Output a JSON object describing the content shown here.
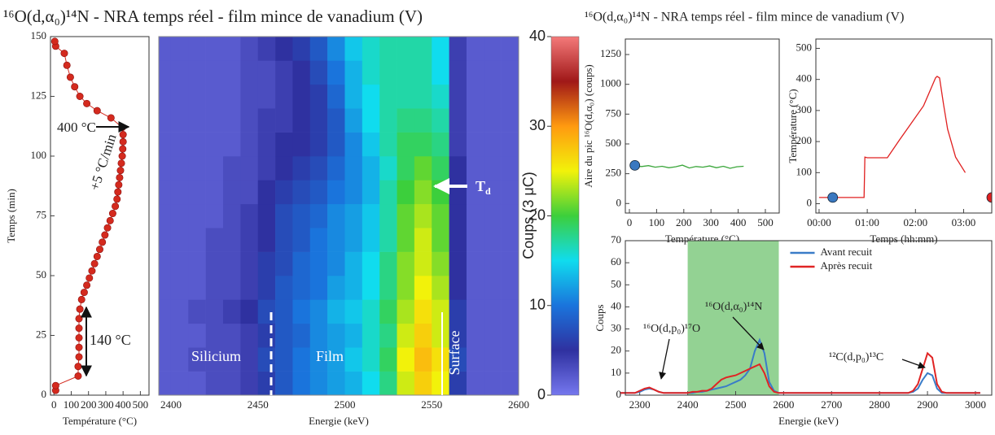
{
  "chart_data": [
    {
      "type": "scatter",
      "color": "#d42a1e",
      "x": [
        10,
        10,
        140,
        140,
        145,
        145,
        145,
        145,
        145,
        150,
        160,
        175,
        190,
        205,
        220,
        235,
        250,
        265,
        280,
        295,
        310,
        325,
        340,
        355,
        365,
        370,
        375,
        380,
        385,
        390,
        395,
        398,
        400,
        400,
        395,
        330,
        250,
        190,
        150,
        120,
        95,
        75,
        60,
        10,
        5
      ],
      "values": [
        2,
        4,
        8,
        12,
        16,
        20,
        24,
        28,
        32,
        36,
        40,
        43,
        46,
        49,
        52,
        55,
        58,
        61,
        64,
        67,
        70,
        73,
        76,
        79,
        82,
        85,
        88,
        91,
        94,
        97,
        100,
        103,
        106,
        109,
        112,
        116,
        119,
        122,
        125,
        129,
        133,
        138,
        143,
        146,
        148
      ],
      "xlim": [
        -20,
        550
      ],
      "ylim": [
        0,
        150
      ],
      "xticks": [
        0,
        100,
        200,
        300,
        400,
        500
      ],
      "yticks": [
        0,
        25,
        50,
        75,
        100,
        125,
        150
      ],
      "xlabel": "Température (°C)",
      "ylabel": "Temps (min)",
      "annotations": [
        "400 °C",
        "+5 °C/min",
        "140 °C"
      ]
    },
    {
      "type": "heatmap",
      "title": "¹⁶O(d,α₀)¹⁴N - NRA temps réel - film mince de vanadium (V)",
      "xbins": [
        2390,
        2400,
        2410,
        2420,
        2430,
        2440,
        2450,
        2460,
        2470,
        2480,
        2490,
        2500,
        2510,
        2520,
        2530,
        2540,
        2550,
        2560,
        2570,
        2580,
        2590,
        2600
      ],
      "ybins": [
        0,
        10,
        20,
        30,
        40,
        50,
        60,
        70,
        80,
        90,
        100,
        110,
        120,
        130,
        140,
        150
      ],
      "z": [
        [
          2,
          2,
          2,
          3,
          3,
          4,
          6,
          8,
          10,
          11,
          12,
          13,
          15,
          18,
          24,
          27,
          25,
          6,
          2,
          2,
          2
        ],
        [
          2,
          2,
          3,
          3,
          3,
          4,
          7,
          8,
          10,
          11,
          12,
          14,
          16,
          19,
          25,
          28,
          26,
          7,
          2,
          2,
          2
        ],
        [
          2,
          2,
          2,
          3,
          3,
          4,
          6,
          8,
          9,
          11,
          12,
          13,
          16,
          18,
          24,
          27,
          24,
          6,
          2,
          2,
          2
        ],
        [
          2,
          2,
          3,
          3,
          4,
          5,
          7,
          8,
          10,
          11,
          13,
          14,
          16,
          19,
          23,
          26,
          24,
          6,
          2,
          2,
          2
        ],
        [
          2,
          2,
          2,
          3,
          3,
          4,
          6,
          8,
          9,
          10,
          12,
          13,
          15,
          18,
          22,
          25,
          23,
          5,
          2,
          2,
          2
        ],
        [
          2,
          2,
          2,
          3,
          3,
          4,
          6,
          7,
          9,
          10,
          11,
          13,
          15,
          18,
          22,
          24,
          22,
          5,
          2,
          2,
          2
        ],
        [
          2,
          2,
          2,
          3,
          3,
          4,
          5,
          7,
          8,
          10,
          11,
          12,
          14,
          17,
          21,
          24,
          21,
          5,
          2,
          2,
          2
        ],
        [
          2,
          2,
          2,
          2,
          3,
          4,
          5,
          7,
          8,
          9,
          11,
          12,
          14,
          17,
          21,
          23,
          21,
          5,
          2,
          2,
          2
        ],
        [
          2,
          2,
          2,
          2,
          3,
          3,
          5,
          6,
          7,
          8,
          10,
          11,
          13,
          17,
          20,
          22,
          20,
          5,
          2,
          2,
          2
        ],
        [
          2,
          2,
          2,
          2,
          3,
          3,
          4,
          5,
          6,
          7,
          9,
          11,
          13,
          16,
          19,
          21,
          19,
          5,
          2,
          2,
          2
        ],
        [
          2,
          2,
          2,
          2,
          2,
          3,
          4,
          5,
          5,
          6,
          8,
          11,
          14,
          17,
          19,
          19,
          18,
          4,
          2,
          2,
          2
        ],
        [
          2,
          2,
          2,
          2,
          2,
          3,
          4,
          4,
          5,
          6,
          8,
          12,
          15,
          17,
          18,
          18,
          17,
          4,
          2,
          2,
          2
        ],
        [
          2,
          2,
          2,
          2,
          2,
          3,
          3,
          4,
          5,
          6,
          9,
          13,
          15,
          17,
          17,
          17,
          16,
          4,
          2,
          2,
          2
        ],
        [
          2,
          2,
          2,
          2,
          2,
          3,
          3,
          4,
          5,
          7,
          10,
          13,
          16,
          17,
          17,
          17,
          15,
          4,
          2,
          2,
          2
        ],
        [
          2,
          2,
          2,
          2,
          2,
          3,
          4,
          5,
          6,
          8,
          11,
          14,
          16,
          17,
          17,
          17,
          15,
          4,
          2,
          2,
          2
        ]
      ],
      "xlim": [
        2393,
        2600
      ],
      "ylim": [
        0,
        150
      ],
      "xticks": [
        2400,
        2450,
        2500,
        2550,
        2600
      ],
      "xlabel": "Energie (keV)",
      "colormap": [
        "#7577ee",
        "#2f31a0",
        "#1a74dc",
        "#10dcee",
        "#3ccf3c",
        "#f2f20a",
        "#ff9a10",
        "#a01818",
        "#f47a7a"
      ],
      "clim": [
        0,
        40
      ],
      "cticks": [
        0,
        10,
        20,
        30,
        40
      ],
      "clabel": "Coups (3 μC)",
      "annotations": [
        "Silicium",
        "Film",
        "Surface"
      ],
      "marker": {
        "main": "T",
        "sub": "d"
      }
    },
    {
      "type": "line",
      "title": "¹⁶O(d,α₀)¹⁴N - NRA temps réel - film mince de vanadium (V)",
      "x": [
        20,
        45,
        70,
        95,
        120,
        145,
        170,
        195,
        220,
        245,
        270,
        295,
        320,
        345,
        370,
        395,
        420
      ],
      "values": [
        315,
        310,
        318,
        305,
        312,
        300,
        308,
        322,
        298,
        310,
        305,
        315,
        300,
        312,
        295,
        308,
        312
      ],
      "color": "#3aa63a",
      "points": [
        {
          "x": 20,
          "y": 320,
          "color": "#3a78c0"
        }
      ],
      "xlim": [
        -15,
        551
      ],
      "ylim": [
        -80,
        1380
      ],
      "xticks": [
        0,
        100,
        200,
        300,
        400,
        500
      ],
      "yticks": [
        0,
        250,
        500,
        750,
        1000,
        1250
      ],
      "xlabel": "Température (°C)",
      "ylabel": "Aire du pic ¹⁶O(d,α₀) (coups)"
    },
    {
      "type": "line",
      "x": [
        0,
        10,
        20,
        30,
        40,
        50,
        56,
        57,
        60,
        70,
        80,
        85,
        100,
        115,
        130,
        145,
        147,
        150,
        155,
        160,
        170,
        182
      ],
      "values": [
        20,
        20,
        20,
        20,
        20,
        20,
        20,
        150,
        148,
        148,
        148,
        148,
        205,
        260,
        315,
        405,
        410,
        405,
        320,
        240,
        150,
        100
      ],
      "color": "#e02020",
      "points": [
        {
          "x": 17,
          "y": 20,
          "color": "#3a78c0"
        },
        {
          "x": 215,
          "y": 20,
          "color": "#e02020"
        }
      ],
      "xlim": [
        -4,
        215
      ],
      "ylim": [
        -30,
        530
      ],
      "xticks": [
        {
          "value": 0,
          "label": "00:00"
        },
        {
          "value": 60,
          "label": "01:00"
        },
        {
          "value": 120,
          "label": "02:00"
        },
        {
          "value": 180,
          "label": "03:00"
        }
      ],
      "yticks": [
        0,
        100,
        200,
        300,
        400,
        500
      ],
      "xlabel": "Temps (hh:mm)",
      "ylabel": "Température (°C)"
    },
    {
      "type": "multiline",
      "x": [
        2260,
        2270,
        2280,
        2290,
        2300,
        2310,
        2320,
        2330,
        2340,
        2350,
        2360,
        2370,
        2380,
        2390,
        2400,
        2410,
        2420,
        2430,
        2440,
        2450,
        2460,
        2470,
        2480,
        2490,
        2500,
        2510,
        2520,
        2530,
        2540,
        2550,
        2560,
        2570,
        2580,
        2590,
        2600,
        2610,
        2620,
        2630,
        2640,
        2650,
        2660,
        2670,
        2680,
        2690,
        2700,
        2710,
        2720,
        2730,
        2740,
        2750,
        2760,
        2770,
        2780,
        2790,
        2800,
        2810,
        2820,
        2830,
        2840,
        2850,
        2860,
        2870,
        2880,
        2890,
        2900,
        2910,
        2920,
        2930,
        2940,
        2950,
        2960,
        2970,
        2980,
        2990,
        3000,
        3010
      ],
      "series": [
        {
          "name": "Avant recuit",
          "color": "#3a7cc8",
          "values": [
            1,
            1,
            1,
            1,
            1.5,
            2.5,
            3,
            2.5,
            1.5,
            1,
            1,
            1,
            1,
            1,
            1,
            1,
            1.5,
            1.5,
            2,
            2.5,
            3,
            3.5,
            4,
            5,
            6,
            7,
            9,
            12,
            20,
            25,
            19,
            6,
            2,
            1,
            1,
            1,
            1,
            1,
            1,
            1,
            1,
            1,
            1,
            1,
            1,
            1,
            1,
            1,
            1,
            1,
            1,
            1,
            1,
            1,
            1,
            1,
            1,
            1,
            1,
            1,
            1,
            1.5,
            3,
            7,
            10,
            9,
            3,
            1,
            1,
            1,
            1,
            1,
            1,
            1,
            1,
            1
          ]
        },
        {
          "name": "Après recuit",
          "color": "#e02424",
          "values": [
            1,
            1,
            1,
            1,
            2,
            3,
            3.5,
            2.5,
            1.5,
            1,
            1,
            1,
            1,
            1,
            1,
            1.5,
            1.5,
            2,
            2,
            3,
            5,
            7,
            8,
            8.5,
            9,
            10,
            11,
            12,
            13,
            14,
            10,
            4,
            1.5,
            1,
            1,
            1,
            1,
            1,
            1,
            1,
            1,
            1,
            1,
            1,
            1,
            1,
            1,
            1,
            1,
            1,
            1,
            1,
            1,
            1,
            1,
            1,
            1,
            1,
            1,
            1,
            1,
            2,
            5,
            12,
            19,
            17,
            5,
            1.5,
            1,
            1,
            1,
            1,
            1,
            1,
            1,
            1
          ]
        }
      ],
      "band": [
        2400,
        2590
      ],
      "band_color": "#93d293",
      "legend": "upper center",
      "xlim": [
        2270,
        3034
      ],
      "ylim": [
        0,
        70
      ],
      "xticks": [
        2300,
        2400,
        2500,
        2600,
        2700,
        2800,
        2900,
        3000
      ],
      "yticks": [
        0,
        10,
        20,
        30,
        40,
        50,
        60,
        70
      ],
      "xlabel": "Energie (keV)",
      "ylabel": "Coups",
      "annotations": [
        "¹⁶O(d,p₀)¹⁷O",
        "¹⁶O(d,α₀)¹⁴N",
        "¹²C(d,p₀)¹³C"
      ]
    }
  ]
}
